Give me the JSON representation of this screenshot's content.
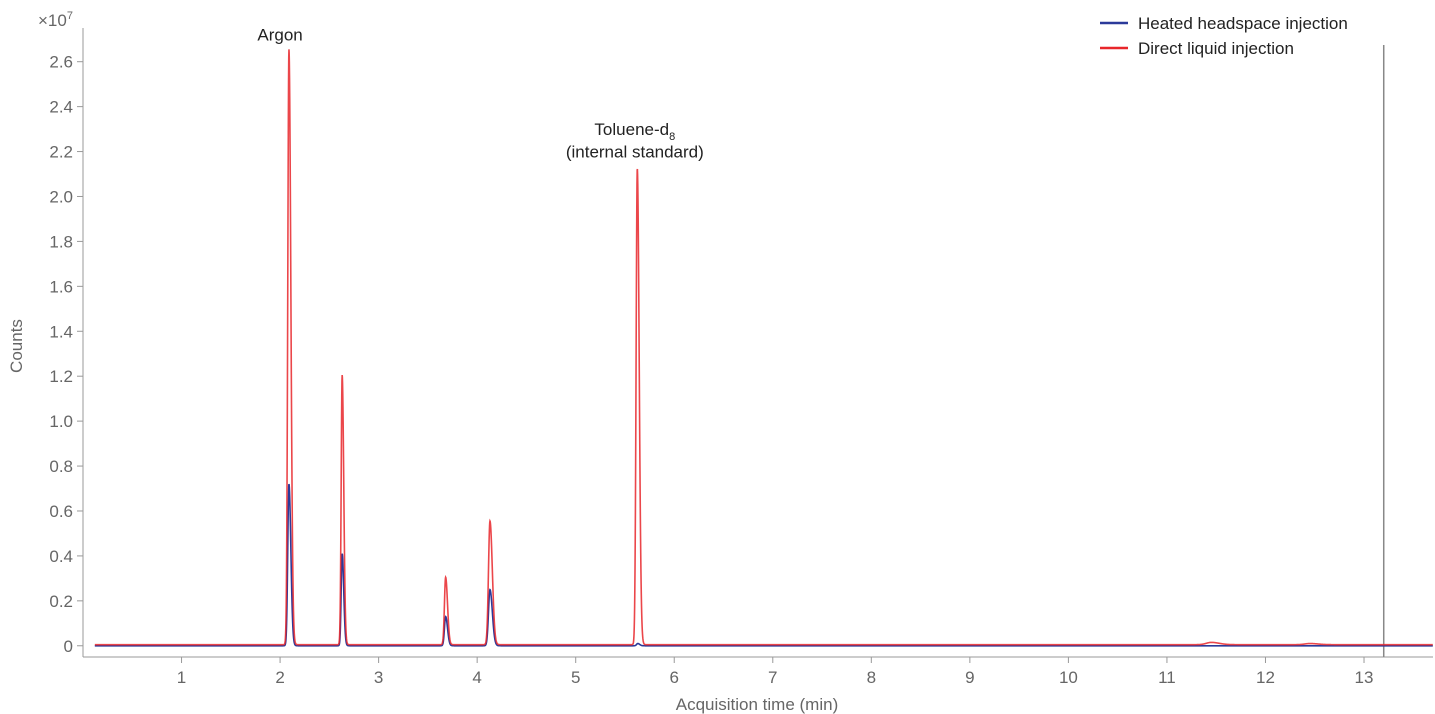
{
  "chart_data": {
    "type": "line",
    "title": "",
    "xlabel": "Acquisition time (min)",
    "ylabel": "Counts",
    "y_multiplier_label": "×10",
    "y_multiplier_exponent": "7",
    "xlim": [
      0.0,
      13.7
    ],
    "ylim": [
      -0.05,
      2.75
    ],
    "x_ticks": [
      1,
      2,
      3,
      4,
      5,
      6,
      7,
      8,
      9,
      10,
      11,
      12,
      13
    ],
    "y_ticks": [
      0,
      0.2,
      0.4,
      0.6,
      0.8,
      1.0,
      1.2,
      1.4,
      1.6,
      1.8,
      2.0,
      2.2,
      2.4,
      2.6
    ],
    "y_tick_labels": [
      "0",
      "0.2",
      "0.4",
      "0.6",
      "0.8",
      "1.0",
      "1.2",
      "1.4",
      "1.6",
      "1.8",
      "2.0",
      "2.2",
      "2.4",
      "2.6"
    ],
    "grid": false,
    "legend_position": "top-right",
    "vertical_marker_x": 13.2,
    "series": [
      {
        "name": "Heated headspace injection",
        "color": "#2b3a9a",
        "baseline": 0.0,
        "peaks": [
          {
            "x": 2.09,
            "y": 0.72,
            "width": 0.012
          },
          {
            "x": 2.63,
            "y": 0.41,
            "width": 0.01
          },
          {
            "x": 3.68,
            "y": 0.13,
            "width": 0.012
          },
          {
            "x": 4.13,
            "y": 0.25,
            "width": 0.015
          },
          {
            "x": 5.63,
            "y": 0.01,
            "width": 0.012
          }
        ]
      },
      {
        "name": "Direct liquid injection",
        "color": "#e8262a",
        "baseline": 0.005,
        "peaks": [
          {
            "x": 2.09,
            "y": 2.65,
            "width": 0.012
          },
          {
            "x": 2.63,
            "y": 1.2,
            "width": 0.01
          },
          {
            "x": 3.68,
            "y": 0.3,
            "width": 0.012
          },
          {
            "x": 4.13,
            "y": 0.55,
            "width": 0.015
          },
          {
            "x": 5.625,
            "y": 2.12,
            "width": 0.012
          },
          {
            "x": 11.45,
            "y": 0.01,
            "width": 0.05
          },
          {
            "x": 12.45,
            "y": 0.005,
            "width": 0.05
          }
        ]
      }
    ],
    "annotations": [
      {
        "text": "Argon",
        "x": 2.0,
        "y": 2.72
      },
      {
        "text": "Toluene-d",
        "subscript": "8",
        "x": 5.6,
        "y": 2.3
      },
      {
        "text": "(internal standard)",
        "x": 5.6,
        "y": 2.2
      }
    ]
  }
}
